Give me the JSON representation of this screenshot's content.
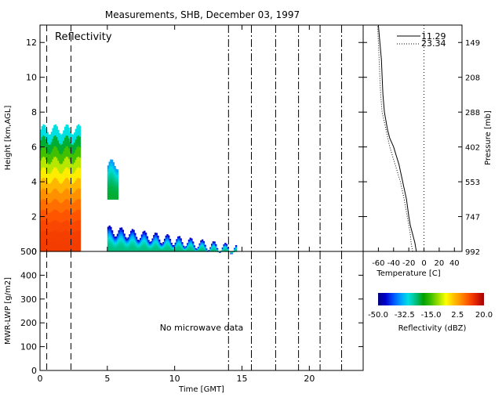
{
  "title": "Measurements, SHB, December 03, 1997",
  "chart_data": [
    {
      "id": "reflectivity",
      "type": "heatmap",
      "panel_label": "Reflectivity",
      "xlabel": "",
      "ylabel": "Height [km,AGL]",
      "xlim": [
        0,
        24
      ],
      "ylim": [
        0,
        13
      ],
      "x_ticks": [
        0,
        5,
        10,
        15,
        20
      ],
      "y_ticks": [
        0,
        2,
        4,
        6,
        8,
        10,
        12
      ],
      "y_tick_labels": [
        "0",
        "2",
        "4",
        "6",
        "8",
        "10",
        "12"
      ],
      "dashdot_lines_x": [
        14,
        15.7,
        17.5,
        19.2,
        20.8,
        22.4
      ],
      "dashed_lines_x": [
        0.5,
        2.3
      ],
      "echoes": [
        {
          "x_start": 0,
          "x_end": 3.0,
          "base_km": 0.0,
          "top_km": 7.0,
          "core_dbz": 12,
          "edge_dbz": -30
        },
        {
          "x_start": 5.0,
          "x_end": 5.7,
          "base_km": 3.0,
          "top_km": 5.0,
          "core_dbz": -22,
          "edge_dbz": -35
        },
        {
          "x_start": 5.0,
          "x_end": 14.5,
          "base_km": 0.0,
          "top_km_start": 1.2,
          "top_km_end": 0.1,
          "core_dbz": -25,
          "edge_dbz": -45
        }
      ]
    },
    {
      "id": "sounding",
      "type": "line",
      "xlabel": "Temperature [C]",
      "ylabel_right": "Pressure [mb]",
      "xlim": [
        -80,
        50
      ],
      "ylim": [
        0,
        13
      ],
      "x_ticks": [
        -60,
        -40,
        -20,
        0,
        20,
        40
      ],
      "pressure_ticks_km": [
        0,
        2,
        4,
        6,
        8,
        10,
        12
      ],
      "pressure_tick_labels": [
        "992",
        "747",
        "553",
        "402",
        "288",
        "208",
        "149"
      ],
      "zero_line_temp": 0,
      "series": [
        {
          "name": "11.29",
          "style": "solid",
          "points": [
            [
              -10,
              0
            ],
            [
              -12,
              0.5
            ],
            [
              -15,
              1
            ],
            [
              -18,
              1.5
            ],
            [
              -20,
              2
            ],
            [
              -23,
              3
            ],
            [
              -28,
              4
            ],
            [
              -33,
              5
            ],
            [
              -40,
              6
            ],
            [
              -45,
              6.5
            ],
            [
              -48,
              7
            ],
            [
              -52,
              8
            ],
            [
              -54,
              9
            ],
            [
              -55,
              10
            ],
            [
              -56,
              11
            ],
            [
              -58,
              12
            ],
            [
              -60,
              13
            ]
          ]
        },
        {
          "name": "23.34",
          "style": "dotted",
          "points": [
            [
              -15,
              0
            ],
            [
              -17,
              0.5
            ],
            [
              -18,
              1
            ],
            [
              -20,
              1.5
            ],
            [
              -22,
              2
            ],
            [
              -26,
              3
            ],
            [
              -31,
              4
            ],
            [
              -38,
              5
            ],
            [
              -45,
              6
            ],
            [
              -50,
              7
            ],
            [
              -55,
              8
            ],
            [
              -57,
              9
            ],
            [
              -58,
              10
            ],
            [
              -59,
              11
            ],
            [
              -60,
              12
            ],
            [
              -61,
              13
            ]
          ]
        }
      ]
    },
    {
      "id": "lwp",
      "type": "line",
      "xlabel": "Time [GMT]",
      "ylabel": "MWR-LWP [g/m2]",
      "xlim": [
        0,
        24
      ],
      "ylim": [
        0,
        500
      ],
      "x_ticks": [
        0,
        5,
        10,
        15,
        20
      ],
      "y_ticks": [
        0,
        100,
        200,
        300,
        400,
        500
      ],
      "y_tick_labels": [
        "0",
        "100",
        "200",
        "300",
        "400",
        "500"
      ],
      "dashdot_lines_x": [
        14,
        15.7,
        17.5,
        19.2,
        20.8,
        22.4
      ],
      "dashed_lines_x": [
        0.5,
        2.3
      ],
      "note": "No microwave data"
    },
    {
      "id": "colorbar",
      "type": "heatmap",
      "xlabel": "Reflectivity (dBZ)",
      "range": [
        -50,
        20
      ],
      "ticks": [
        -50,
        -32.5,
        -15,
        2.5,
        20
      ],
      "tick_labels": [
        "-50.0",
        "-32.5",
        "-15.0",
        "2.5",
        "20.0"
      ],
      "colors": [
        "#000080",
        "#0000cd",
        "#0050ff",
        "#00a0ff",
        "#00e0e0",
        "#00c080",
        "#00a000",
        "#40c000",
        "#a0e000",
        "#ffff00",
        "#ffc000",
        "#ff8c00",
        "#ff5000",
        "#e02000",
        "#a00000"
      ]
    }
  ]
}
